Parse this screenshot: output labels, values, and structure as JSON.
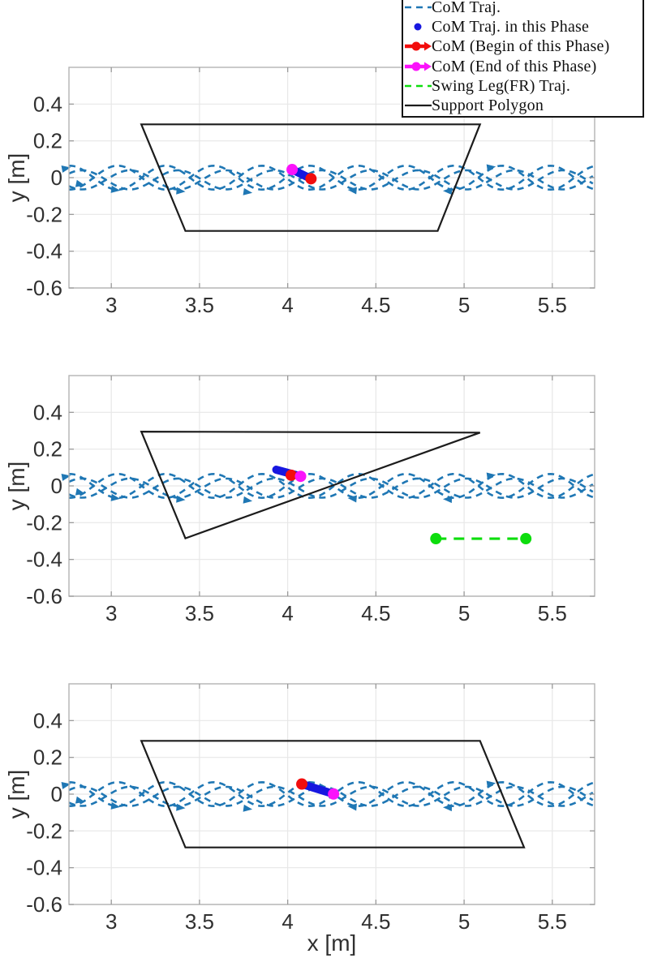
{
  "figure": {
    "background": "#ffffff"
  },
  "legend": {
    "items": [
      {
        "id": "com-traj",
        "label": "CoM Traj.",
        "swatch": "dashed",
        "color": "#1f77b4"
      },
      {
        "id": "com-traj-phase",
        "label": "CoM Traj. in this Phase",
        "swatch": "dot",
        "color": "#1717e0"
      },
      {
        "id": "com-begin",
        "label": "CoM (Begin of this Phase)",
        "swatch": "line-dot",
        "color": "#f20d0d"
      },
      {
        "id": "com-end",
        "label": "CoM (End of this Phase)",
        "swatch": "line-dot",
        "color": "#fb12fb"
      },
      {
        "id": "swing-leg",
        "label": "Swing Leg(FR) Traj.",
        "swatch": "dashed",
        "color": "#0ddd0d"
      },
      {
        "id": "support-polygon",
        "label": "Support Polygon",
        "swatch": "line",
        "color": "#1c1c1c"
      }
    ]
  },
  "chart_data": {
    "type": "line",
    "title": "",
    "axes": {
      "xlabel": "x [m]",
      "ylabel": "y [m]",
      "xlim": [
        2.76,
        5.74
      ],
      "ylim": [
        -0.6,
        0.6
      ],
      "xticks": {
        "values": [
          3,
          3.5,
          4,
          4.5,
          5,
          5.5
        ],
        "labels": [
          "3",
          "3.5",
          "4",
          "4.5",
          "5",
          "5.5"
        ]
      },
      "yticks": {
        "values": [
          -0.6,
          -0.4,
          -0.2,
          0,
          0.2,
          0.4
        ],
        "labels": [
          "-0.6",
          "-0.4",
          "-0.2",
          "0",
          "0.2",
          "0.4"
        ]
      },
      "grid": true
    },
    "com_trajectory_pattern": {
      "description": "dashed CoM trajectory oscillating about y=0 across full x range",
      "waves": [
        {
          "amplitude": 0.065,
          "period": 0.545,
          "zero_cross_x": 2.9,
          "y_offset": 0
        },
        {
          "amplitude": -0.065,
          "period": 0.545,
          "zero_cross_x": 2.9,
          "y_offset": 0
        },
        {
          "amplitude": 0.052,
          "period": 0.545,
          "zero_cross_x": 2.97,
          "y_offset": -0.012
        },
        {
          "amplitude": -0.052,
          "period": 0.545,
          "zero_cross_x": 2.97,
          "y_offset": -0.012
        }
      ],
      "arrows": [
        {
          "x": 2.77,
          "y": 0.055,
          "deg": -10
        },
        {
          "x": 2.85,
          "y": -0.042,
          "deg": 12
        },
        {
          "x": 3.05,
          "y": -0.07,
          "deg": 8
        },
        {
          "x": 3.42,
          "y": -0.076,
          "deg": 5
        },
        {
          "x": 3.8,
          "y": -0.083,
          "deg": 8
        },
        {
          "x": 4.34,
          "y": -0.066,
          "deg": 185
        },
        {
          "x": 4.88,
          "y": -0.072,
          "deg": 182
        },
        {
          "x": 5.18,
          "y": 0.06,
          "deg": -8
        }
      ]
    },
    "subplots": [
      {
        "name": "phase-1",
        "support_polygon": [
          [
            3.17,
            0.29
          ],
          [
            5.09,
            0.29
          ],
          [
            4.85,
            -0.29
          ],
          [
            3.42,
            -0.29
          ]
        ],
        "com_phase_path": [
          [
            4.025,
            0.044
          ],
          [
            4.132,
            -0.006
          ]
        ],
        "com_begin": [
          4.132,
          -0.006
        ],
        "com_end": [
          4.025,
          0.044
        ],
        "swing_leg": null,
        "show_xlabel": false
      },
      {
        "name": "phase-2",
        "support_polygon": [
          [
            3.17,
            0.295
          ],
          [
            5.09,
            0.29
          ],
          [
            3.42,
            -0.285
          ]
        ],
        "com_phase_path": [
          [
            3.935,
            0.088
          ],
          [
            4.05,
            0.058
          ]
        ],
        "com_begin": [
          4.02,
          0.058
        ],
        "com_end": [
          4.073,
          0.052
        ],
        "swing_leg": [
          [
            4.84,
            -0.287
          ],
          [
            5.35,
            -0.287
          ]
        ],
        "show_xlabel": false
      },
      {
        "name": "phase-3",
        "support_polygon": [
          [
            3.17,
            0.29
          ],
          [
            5.09,
            0.29
          ],
          [
            5.34,
            -0.29
          ],
          [
            3.42,
            -0.29
          ]
        ],
        "com_phase_path": [
          [
            4.08,
            0.055
          ],
          [
            4.26,
            0.001
          ]
        ],
        "com_begin": [
          4.08,
          0.055
        ],
        "com_end": [
          4.26,
          0.001
        ],
        "swing_leg": null,
        "show_xlabel": true
      }
    ]
  },
  "colors": {
    "com_traj": "#1f77b4",
    "phase_traj": "#1717e0",
    "begin": "#f20d0d",
    "end": "#fb12fb",
    "swing": "#0ddd0d",
    "polygon": "#1c1c1c",
    "grid": "#e7e7e7",
    "spine": "#b3b3b3",
    "tick": "#9a9a9a",
    "text": "#303030"
  }
}
